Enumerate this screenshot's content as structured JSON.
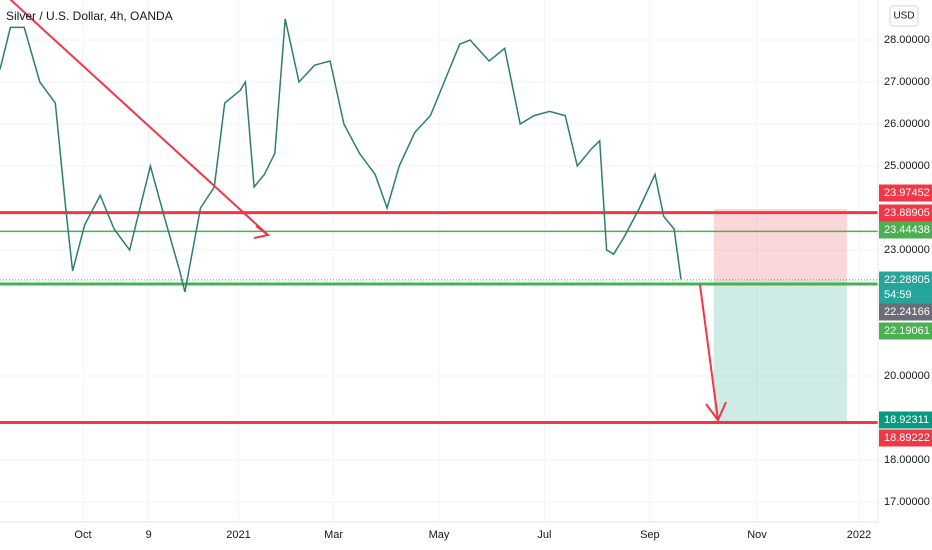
{
  "chart_data": {
    "type": "line",
    "title": "Silver / U.S. Dollar, 4h, OANDA",
    "currency": "USD",
    "color": "#2f7d6e",
    "x": [
      0,
      6,
      14,
      23,
      32,
      38,
      42,
      49,
      58,
      66,
      75,
      87,
      95,
      104,
      107,
      116,
      124,
      130,
      139,
      142,
      147,
      153,
      159,
      165,
      173,
      182,
      191,
      199,
      208,
      217,
      224,
      231,
      240,
      249,
      257,
      266,
      272,
      283,
      292,
      301,
      309,
      318,
      327,
      334,
      342,
      347,
      351,
      355,
      361,
      370,
      379,
      384,
      390,
      394
    ],
    "values": [
      27.3,
      28.3,
      28.3,
      27.0,
      26.5,
      24.0,
      22.5,
      23.6,
      24.3,
      23.5,
      23.0,
      25.0,
      23.8,
      22.5,
      22.0,
      24.0,
      24.5,
      26.5,
      26.8,
      27.0,
      24.5,
      24.8,
      25.3,
      28.5,
      27.0,
      27.4,
      27.5,
      26.0,
      25.3,
      24.8,
      24.0,
      25.0,
      25.8,
      26.2,
      27.0,
      27.9,
      28.0,
      27.5,
      27.8,
      26.0,
      26.2,
      26.3,
      26.2,
      25.0,
      25.4,
      25.6,
      23.0,
      22.9,
      23.3,
      24.0,
      24.8,
      23.8,
      23.5,
      22.3
    ],
    "xlim": [
      0,
      508
    ],
    "xticks": [
      {
        "value": 48,
        "label": "Oct"
      },
      {
        "value": 86,
        "label": "9"
      },
      {
        "value": 138,
        "label": "2021"
      },
      {
        "value": 193,
        "label": "Mar"
      },
      {
        "value": 254,
        "label": "May"
      },
      {
        "value": 315,
        "label": "Jul"
      },
      {
        "value": 376,
        "label": "Sep"
      },
      {
        "value": 438,
        "label": "Nov"
      },
      {
        "value": 497,
        "label": "2022"
      }
    ],
    "ylim": [
      16.524,
      28.952
    ],
    "yticks": [
      {
        "value": 17,
        "label": "17.00000"
      },
      {
        "value": 18,
        "label": "18.00000"
      },
      {
        "value": 20,
        "label": "20.00000"
      },
      {
        "value": 23,
        "label": "23.00000"
      },
      {
        "value": 25,
        "label": "25.00000"
      },
      {
        "value": 26,
        "label": "26.00000"
      },
      {
        "value": 27,
        "label": "27.00000"
      },
      {
        "value": 28,
        "label": "28.00000"
      }
    ],
    "grid": true,
    "levels": [
      {
        "value": 23.88905,
        "color": "#f23645"
      },
      {
        "value": 23.44438,
        "color": "#4caf50"
      },
      {
        "value": 22.19061,
        "color": "#4caf50"
      },
      {
        "value": 18.89222,
        "color": "#f23645"
      }
    ],
    "position": {
      "entry": 22.24166,
      "stop": 23.97452,
      "target": 18.92311,
      "x_start": 413,
      "x_end": 490
    },
    "price_labels": [
      {
        "value": 23.97452,
        "color": "#f23645"
      },
      {
        "value": 23.88905,
        "color": "#f23645"
      },
      {
        "value": 23.44438,
        "color": "#4caf50"
      },
      {
        "value": 22.28805,
        "color": "#26a69a"
      },
      {
        "value": 22.24166,
        "color": "#6a6d78"
      },
      {
        "value": 22.19061,
        "color": "#4caf50"
      },
      {
        "value": 18.92311,
        "color": "#089981"
      },
      {
        "value": 18.89222,
        "color": "#f23645"
      }
    ],
    "countdown": "54:59"
  }
}
